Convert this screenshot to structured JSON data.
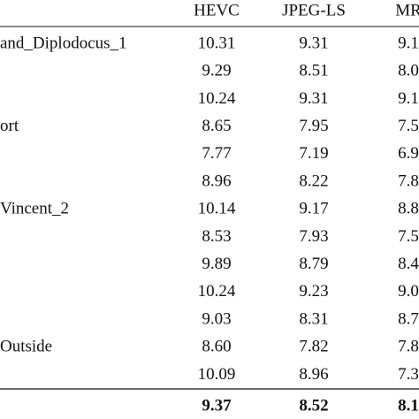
{
  "table": {
    "header": [
      "HEVC",
      "JPEG-LS",
      "MR"
    ],
    "rows": [
      {
        "label": "and_Diplodocus_1",
        "cells": [
          "10.31",
          "9.31",
          "9.1"
        ]
      },
      {
        "cells": [
          "9.29",
          "8.51",
          "8.0"
        ]
      },
      {
        "cells": [
          "10.24",
          "9.31",
          "9.1"
        ]
      },
      {
        "label": "ort",
        "cells": [
          "8.65",
          "7.95",
          "7.5"
        ]
      },
      {
        "cells": [
          "7.77",
          "7.19",
          "6.9"
        ]
      },
      {
        "cells": [
          "8.96",
          "8.22",
          "7.8"
        ]
      },
      {
        "label": "Vincent_2",
        "cells": [
          "10.14",
          "9.17",
          "8.8"
        ]
      },
      {
        "cells": [
          "8.53",
          "7.93",
          "7.5"
        ]
      },
      {
        "cells": [
          "9.89",
          "8.79",
          "8.4"
        ]
      },
      {
        "cells": [
          "10.24",
          "9.23",
          "9.0"
        ]
      },
      {
        "cells": [
          "9.03",
          "8.31",
          "8.7"
        ]
      },
      {
        "label": "Outside",
        "cells": [
          "8.60",
          "7.82",
          "7.8"
        ]
      },
      {
        "cells": [
          "10.09",
          "8.96",
          "7.3"
        ]
      }
    ],
    "total": [
      "9.37",
      "8.52",
      "8.1"
    ]
  }
}
